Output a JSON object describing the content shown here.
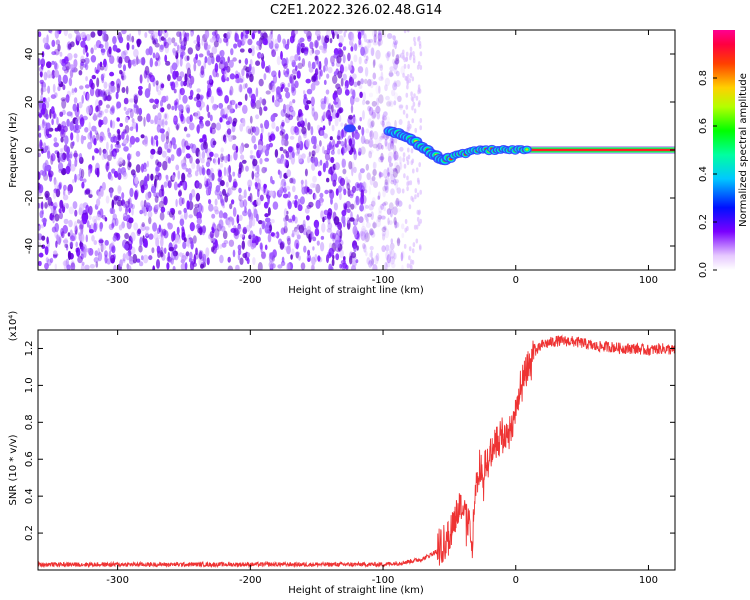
{
  "title": "C2E1.2022.326.02.48.G14",
  "chart_data": [
    {
      "type": "heatmap",
      "xlabel": "Height of straight line (km)",
      "ylabel": "Frequency (Hz)",
      "xlim": [
        -360,
        120
      ],
      "ylim": [
        -50,
        50
      ],
      "xticks": [
        -300,
        -200,
        -100,
        0,
        100
      ],
      "yticks": [
        -40,
        -20,
        0,
        20,
        40
      ],
      "colorbar": {
        "label": "Normalized spectral amplitude",
        "ticks": [
          "0.0",
          "0.2",
          "0.4",
          "0.6",
          "0.8"
        ],
        "range": [
          0,
          1
        ]
      },
      "signal_track": {
        "x": [
          -95,
          -85,
          -75,
          -65,
          -55,
          -48,
          -42,
          -35,
          -25,
          -15,
          -5,
          0,
          20,
          60,
          120
        ],
        "y": [
          8,
          6,
          3,
          -1,
          -4,
          -3,
          -2,
          -1,
          0,
          0,
          0,
          0,
          0,
          0,
          0
        ]
      },
      "noise_region_x": [
        -360,
        -85
      ]
    },
    {
      "type": "line",
      "xlabel": "Height of straight line (km)",
      "ylabel": "SNR (10 * v/v)",
      "yunit": "(x10⁴)",
      "xlim": [
        -360,
        120
      ],
      "ylim": [
        0,
        1.3
      ],
      "xticks": [
        -300,
        -200,
        -100,
        0,
        100
      ],
      "yticks": [
        0.2,
        0.4,
        0.6,
        0.8,
        1.0,
        1.2
      ],
      "series": [
        {
          "color": "#ee3333",
          "x": [
            -360,
            -100,
            -85,
            -70,
            -60,
            -50,
            -45,
            -42,
            -38,
            -35,
            -33,
            -30,
            -27,
            -25,
            -20,
            -15,
            -10,
            -5,
            -2,
            0,
            3,
            5,
            10,
            15,
            20,
            30,
            40,
            50,
            60,
            70,
            80,
            90,
            100,
            110,
            120
          ],
          "y": [
            0.03,
            0.03,
            0.04,
            0.06,
            0.1,
            0.18,
            0.3,
            0.35,
            0.32,
            0.25,
            0.1,
            0.45,
            0.55,
            0.5,
            0.62,
            0.7,
            0.72,
            0.75,
            0.8,
            0.88,
            0.95,
            1.0,
            1.1,
            1.18,
            1.22,
            1.24,
            1.24,
            1.23,
            1.21,
            1.21,
            1.2,
            1.2,
            1.19,
            1.2,
            1.19
          ]
        }
      ]
    }
  ]
}
